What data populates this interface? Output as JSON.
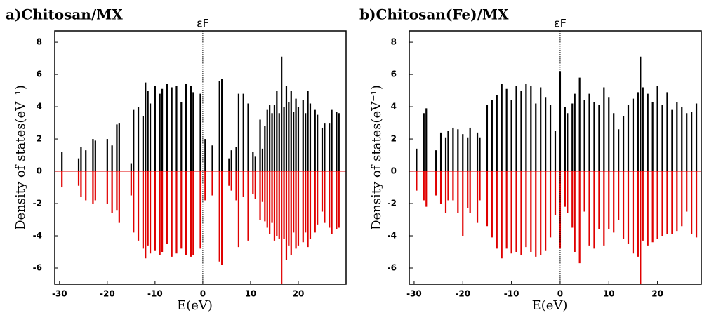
{
  "chart_data": [
    {
      "type": "spike",
      "title": "a)Chitosan/MX",
      "x_label": "E(eV)",
      "y_label": "Density of states(eV⁻¹)",
      "annotations": [
        {
          "text": "εF",
          "x": 0
        }
      ],
      "xlim": [
        -31,
        30
      ],
      "ylim": [
        -7,
        8.7
      ],
      "xticks": [
        -30,
        -20,
        -10,
        0,
        10,
        20
      ],
      "yticks": [
        -6,
        -4,
        -2,
        0,
        2,
        4,
        6,
        8
      ],
      "x": [
        -29.5,
        -26,
        -25.5,
        -24.5,
        -23,
        -22.5,
        -20,
        -19,
        -18,
        -17.5,
        -15,
        -14.5,
        -13.5,
        -12.5,
        -12,
        -11.5,
        -11,
        -10,
        -9,
        -8.5,
        -7.5,
        -6.5,
        -5.5,
        -4.5,
        -3.5,
        -2.5,
        -2,
        -0.5,
        0.5,
        2,
        3.5,
        4,
        5.5,
        6,
        7,
        7.5,
        8.5,
        9.5,
        10.5,
        11,
        12,
        12.5,
        13,
        13.5,
        14,
        14.5,
        15,
        15.5,
        16,
        16.5,
        17,
        17.5,
        18,
        18.5,
        19,
        19.5,
        20,
        21,
        21.5,
        22,
        22.5,
        23.5,
        24,
        25,
        25.5,
        26.5,
        27,
        28,
        28.5
      ],
      "series": [
        {
          "color": "#000000",
          "values": [
            1.2,
            0.8,
            1.5,
            1.3,
            2,
            1.9,
            2,
            1.6,
            2.9,
            3,
            0.5,
            3.8,
            4,
            3.4,
            5.5,
            5,
            4.2,
            5.3,
            4.8,
            5.1,
            5.4,
            5.2,
            5.3,
            4.3,
            5.4,
            5.3,
            4.9,
            4.8,
            2,
            1.6,
            5.6,
            5.7,
            0.8,
            1.3,
            1.5,
            4.8,
            4.8,
            4.2,
            1.2,
            0.9,
            3.2,
            1.4,
            2.8,
            3.8,
            4.1,
            3.6,
            4.1,
            5,
            3.6,
            7.1,
            4,
            5.3,
            4.3,
            5,
            3.7,
            4.5,
            4,
            4.4,
            3.6,
            5,
            4.2,
            3.8,
            3.5,
            2.7,
            3,
            3,
            3.8,
            3.7,
            3.6
          ]
        },
        {
          "color": "#e00000",
          "values": [
            -1,
            -0.9,
            -1.6,
            -1.8,
            -2,
            -1.8,
            -2,
            -2.6,
            -2.4,
            -3.2,
            -1.5,
            -3.8,
            -4.3,
            -4.8,
            -5.4,
            -4.6,
            -5.1,
            -4.9,
            -5.2,
            -5,
            -4.5,
            -5.3,
            -5.1,
            -4.8,
            -5.2,
            -5.3,
            -5.2,
            -4.8,
            -1.8,
            -1.5,
            -5.6,
            -5.8,
            -0.9,
            -1.2,
            -1.8,
            -4.7,
            -1.6,
            -4.3,
            -1.4,
            -1.7,
            -3,
            -1.9,
            -3.1,
            -3.5,
            -3.9,
            -3.2,
            -4.3,
            -4,
            -4.2,
            -7,
            -4.2,
            -5.5,
            -4.6,
            -5.2,
            -3.8,
            -4.8,
            -4.6,
            -4.4,
            -3.8,
            -4.7,
            -4.2,
            -3.8,
            -3.3,
            -2.5,
            -3.2,
            -3.5,
            -3.9,
            -3.6,
            -3.5
          ]
        }
      ]
    },
    {
      "type": "spike",
      "title": "b)Chitosan(Fe)/MX",
      "x_label": "E(eV)",
      "y_label": "Density of states(eV⁻¹)",
      "annotations": [
        {
          "text": "εF",
          "x": 0
        }
      ],
      "xlim": [
        -31,
        29
      ],
      "ylim": [
        -7,
        8.7
      ],
      "xticks": [
        -30,
        -20,
        -10,
        0,
        10,
        20
      ],
      "yticks": [
        -6,
        -4,
        -2,
        0,
        2,
        4,
        6,
        8
      ],
      "x": [
        -29.5,
        -28,
        -27.5,
        -25.5,
        -24.5,
        -23.5,
        -23,
        -22,
        -21,
        -20,
        -19,
        -18.5,
        -17,
        -16.5,
        -15,
        -14,
        -13,
        -12,
        -11,
        -10,
        -9,
        -8,
        -7,
        -6,
        -5,
        -4,
        -3,
        -2,
        -1,
        0,
        1,
        1.5,
        2.5,
        3,
        4,
        5,
        6,
        7,
        8,
        9,
        10,
        11,
        12,
        13,
        14,
        15,
        16,
        16.5,
        17,
        18,
        19,
        20,
        21,
        22,
        23,
        24,
        25,
        26,
        27,
        28
      ],
      "series": [
        {
          "color": "#000000",
          "values": [
            1.4,
            3.6,
            3.9,
            1.3,
            2.4,
            2.1,
            2.5,
            2.7,
            2.6,
            2.3,
            2.1,
            2.7,
            2.4,
            2.1,
            4.1,
            4.4,
            4.7,
            5.4,
            5.1,
            4.4,
            5.3,
            5,
            5.4,
            5.3,
            4.2,
            5.2,
            4.6,
            4.1,
            2.5,
            6.2,
            4,
            3.6,
            4.2,
            4.8,
            5.8,
            4.4,
            4.8,
            4.3,
            4.1,
            5.2,
            4.6,
            3.6,
            2.6,
            3.4,
            4.1,
            4.5,
            4.9,
            7.1,
            5.2,
            4.8,
            4.3,
            5.3,
            4.1,
            4.9,
            3.8,
            4.3,
            4,
            3.6,
            3.7,
            4.2
          ]
        },
        {
          "color": "#e00000",
          "values": [
            -1.2,
            -1.8,
            -2.2,
            -1.5,
            -2,
            -2.6,
            -1.8,
            -1.8,
            -2.6,
            -4,
            -2.3,
            -2.6,
            -3.2,
            -1.8,
            -3.4,
            -4.1,
            -4.8,
            -5.4,
            -4.8,
            -5.1,
            -5,
            -5.2,
            -4.7,
            -5,
            -5.3,
            -5.2,
            -4.9,
            -4.1,
            -2.7,
            -4.8,
            -2.2,
            -2.6,
            -3.5,
            -5,
            -5.7,
            -2.5,
            -4.6,
            -4.8,
            -3.6,
            -4.6,
            -3.6,
            -3.8,
            -3,
            -4.2,
            -4.5,
            -5.1,
            -5.3,
            -7,
            -4.3,
            -4.6,
            -4.4,
            -4.2,
            -4,
            -3.9,
            -3.9,
            -3.7,
            -3.4,
            -2.5,
            -3.9,
            -4.1
          ]
        }
      ]
    }
  ]
}
